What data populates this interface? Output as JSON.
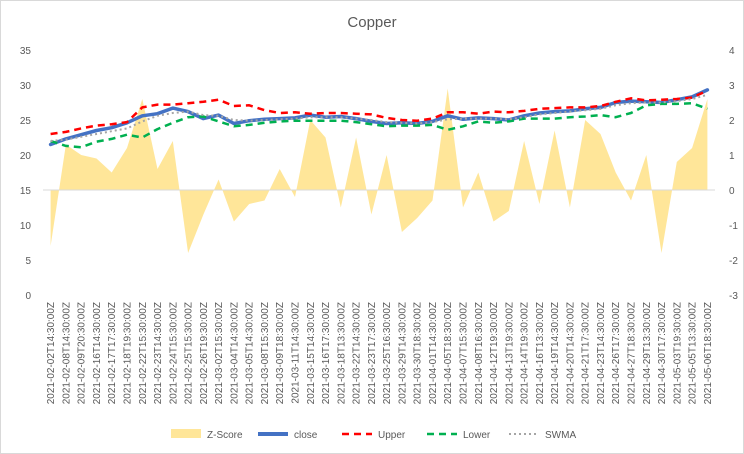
{
  "chart_data": {
    "type": "line",
    "title": "Copper",
    "legend_position": "bottom",
    "grid": false,
    "y_left": {
      "min": 0,
      "max": 35,
      "ticks": [
        0,
        5,
        10,
        15,
        20,
        25,
        30,
        35
      ]
    },
    "y_right": {
      "min": -3,
      "max": 4,
      "ticks": [
        -3,
        -2,
        -1,
        0,
        1,
        2,
        3,
        4
      ]
    },
    "x_tick_labels": [
      "2021-02-02T14:30:00Z",
      "2021-02-08T14:30:00Z",
      "2021-02-09T20:30:00Z",
      "2021-02-16T14:30:00Z",
      "2021-02-17T17:30:00Z",
      "2021-02-18T19:30:00Z",
      "2021-02-22T15:30:00Z",
      "2021-02-23T14:30:00Z",
      "2021-02-24T15:30:00Z",
      "2021-02-25T15:30:00Z",
      "2021-02-26T19:30:00Z",
      "2021-03-02T15:30:00Z",
      "2021-03-04T14:30:00Z",
      "2021-03-05T14:30:00Z",
      "2021-03-08T15:30:00Z",
      "2021-03-09T18:30:00Z",
      "2021-03-11T14:30:00Z",
      "2021-03-15T14:30:00Z",
      "2021-03-16T17:30:00Z",
      "2021-03-18T13:30:00Z",
      "2021-03-22T14:30:00Z",
      "2021-03-23T17:30:00Z",
      "2021-03-25T16:30:00Z",
      "2021-03-29T14:30:00Z",
      "2021-03-30T18:30:00Z",
      "2021-04-01T14:30:00Z",
      "2021-04-05T18:30:00Z",
      "2021-04-07T15:30:00Z",
      "2021-04-08T16:30:00Z",
      "2021-04-12T19:30:00Z",
      "2021-04-13T19:30:00Z",
      "2021-04-14T19:30:00Z",
      "2021-04-16T13:30:00Z",
      "2021-04-19T14:30:00Z",
      "2021-04-20T14:30:00Z",
      "2021-04-21T17:30:00Z",
      "2021-04-23T14:30:00Z",
      "2021-04-26T17:30:00Z",
      "2021-04-27T18:30:00Z",
      "2021-04-29T13:30:00Z",
      "2021-04-30T17:30:00Z",
      "2021-05-03T19:30:00Z",
      "2021-05-05T13:30:00Z",
      "2021-05-06T18:30:00Z"
    ],
    "series": [
      {
        "name": "Z-Score",
        "axis": "right",
        "type": "area",
        "color": "#FFE699",
        "x": [
          0,
          1,
          2,
          3,
          4,
          5,
          6,
          7,
          8,
          9,
          10,
          11,
          12,
          13,
          14,
          15,
          16,
          17,
          18,
          19,
          20,
          21,
          22,
          23,
          24,
          25,
          26,
          27,
          28,
          29,
          30,
          31,
          32,
          33,
          34,
          35,
          36,
          37,
          38,
          39,
          40,
          41,
          42,
          43
        ],
        "values": [
          -1.6,
          1.3,
          1.0,
          0.9,
          0.5,
          1.2,
          2.6,
          0.6,
          1.4,
          -1.8,
          -0.7,
          0.3,
          -0.9,
          -0.4,
          -0.3,
          0.6,
          -0.2,
          2.0,
          1.5,
          -0.5,
          1.5,
          -0.7,
          1.0,
          -1.2,
          -0.8,
          -0.3,
          2.9,
          -0.5,
          0.5,
          -0.9,
          -0.6,
          1.4,
          -0.4,
          1.7,
          -0.5,
          2.0,
          1.6,
          0.5,
          -0.3,
          1.0,
          -1.8,
          0.8,
          1.2,
          2.6
        ]
      },
      {
        "name": "close",
        "axis": "left",
        "type": "line",
        "color": "#4472C4",
        "x": [
          0,
          1,
          2,
          3,
          4,
          5,
          6,
          7,
          8,
          9,
          10,
          11,
          12,
          13,
          14,
          15,
          16,
          17,
          18,
          19,
          20,
          21,
          22,
          23,
          24,
          25,
          26,
          27,
          28,
          29,
          30,
          31,
          32,
          33,
          34,
          35,
          36,
          37,
          38,
          39,
          40,
          41,
          42,
          43
        ],
        "values": [
          21.5,
          22.3,
          22.9,
          23.5,
          23.9,
          24.6,
          25.6,
          25.9,
          26.7,
          26.2,
          25.2,
          25.7,
          24.5,
          24.9,
          25.1,
          25.2,
          25.3,
          25.7,
          25.4,
          25.5,
          25.2,
          24.8,
          24.5,
          24.6,
          24.5,
          24.8,
          25.6,
          25.1,
          25.3,
          25.2,
          25.0,
          25.6,
          26.0,
          26.2,
          26.3,
          26.6,
          26.8,
          27.5,
          27.7,
          27.6,
          27.5,
          27.9,
          28.3,
          29.3
        ]
      },
      {
        "name": "Upper",
        "axis": "left",
        "type": "line",
        "color": "#FF0000",
        "dash": "dashed",
        "x": [
          0,
          1,
          2,
          3,
          4,
          5,
          6,
          7,
          8,
          9,
          10,
          11,
          12,
          13,
          14,
          15,
          16,
          17,
          18,
          19,
          20,
          21,
          22,
          23,
          24,
          25,
          26,
          27,
          28,
          29,
          30,
          31,
          32,
          33,
          34,
          35,
          36,
          37,
          38,
          39,
          40,
          41,
          42,
          43
        ],
        "values": [
          23.0,
          23.3,
          23.8,
          24.2,
          24.4,
          24.7,
          26.8,
          27.2,
          27.2,
          27.4,
          27.6,
          27.9,
          27.0,
          27.1,
          26.4,
          26.0,
          26.1,
          25.9,
          26.0,
          26.0,
          25.9,
          25.8,
          25.3,
          25.0,
          24.9,
          25.2,
          26.1,
          26.1,
          25.9,
          26.2,
          26.1,
          26.3,
          26.6,
          26.7,
          26.8,
          26.8,
          27.0,
          27.6,
          28.1,
          27.8,
          27.9,
          28.0,
          28.2,
          29.2
        ]
      },
      {
        "name": "Lower",
        "axis": "left",
        "type": "line",
        "color": "#00B050",
        "dash": "dashed",
        "x": [
          0,
          1,
          2,
          3,
          4,
          5,
          6,
          7,
          8,
          9,
          10,
          11,
          12,
          13,
          14,
          15,
          16,
          17,
          18,
          19,
          20,
          21,
          22,
          23,
          24,
          25,
          26,
          27,
          28,
          29,
          30,
          31,
          32,
          33,
          34,
          35,
          36,
          37,
          38,
          39,
          40,
          41,
          42,
          43
        ],
        "values": [
          22.0,
          21.3,
          21.1,
          21.9,
          22.3,
          22.9,
          22.5,
          23.7,
          24.6,
          25.4,
          25.5,
          24.8,
          24.1,
          24.3,
          24.6,
          24.8,
          24.9,
          24.9,
          24.9,
          24.9,
          24.7,
          24.4,
          24.1,
          24.2,
          24.2,
          24.3,
          23.6,
          24.1,
          24.8,
          24.6,
          24.8,
          25.2,
          25.2,
          25.2,
          25.4,
          25.5,
          25.7,
          25.4,
          26.0,
          27.1,
          27.3,
          27.3,
          27.4,
          26.6
        ]
      },
      {
        "name": "SWMA",
        "axis": "left",
        "type": "line",
        "color": "#A5A5A5",
        "dash": "dotted",
        "x": [
          0,
          1,
          2,
          3,
          4,
          5,
          6,
          7,
          8,
          9,
          10,
          11,
          12,
          13,
          14,
          15,
          16,
          17,
          18,
          19,
          20,
          21,
          22,
          23,
          24,
          25,
          26,
          27,
          28,
          29,
          30,
          31,
          32,
          33,
          34,
          35,
          36,
          37,
          38,
          39,
          40,
          41,
          42,
          43
        ],
        "values": [
          22.0,
          22.2,
          22.6,
          23.0,
          23.4,
          23.8,
          24.8,
          25.6,
          26.0,
          26.2,
          25.7,
          25.6,
          25.0,
          24.9,
          25.0,
          25.1,
          25.2,
          25.4,
          25.4,
          25.4,
          25.2,
          25.0,
          24.7,
          24.6,
          24.5,
          24.7,
          25.1,
          25.2,
          25.2,
          25.2,
          25.1,
          25.4,
          25.8,
          26.0,
          26.2,
          26.4,
          26.6,
          27.1,
          27.4,
          27.5,
          27.5,
          27.7,
          28.0,
          28.6
        ]
      }
    ]
  }
}
